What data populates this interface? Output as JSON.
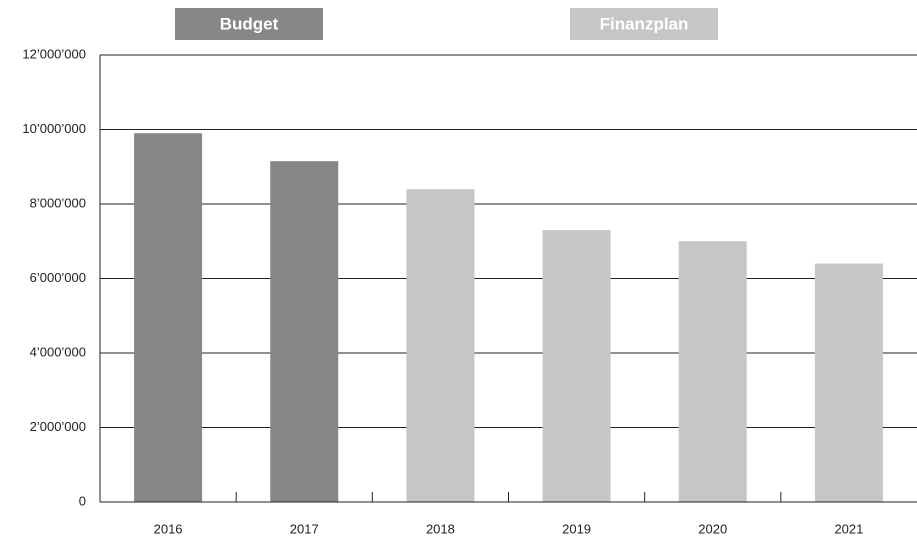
{
  "chart_data": {
    "type": "bar",
    "categories": [
      "2016",
      "2017",
      "2018",
      "2019",
      "2020",
      "2021"
    ],
    "series": [
      {
        "name": "Budget",
        "color": "#878787",
        "values": [
          9900000,
          9150000,
          null,
          null,
          null,
          null
        ]
      },
      {
        "name": "Finanzplan",
        "color": "#c6c6c6",
        "values": [
          null,
          null,
          8400000,
          7300000,
          7000000,
          6400000
        ]
      }
    ],
    "ylim": [
      0,
      12000000
    ],
    "yticks": [
      0,
      {
        "value": 2000000,
        "label": "2’000’000"
      },
      {
        "value": 4000000,
        "label": "4’000’000"
      },
      {
        "value": 6000000,
        "label": "6’000’000"
      },
      {
        "value": 8000000,
        "label": "8’000’000"
      },
      {
        "value": 10000000,
        "label": "10’000’000"
      },
      {
        "value": 12000000,
        "label": "12’000’000"
      }
    ],
    "grid": true
  }
}
